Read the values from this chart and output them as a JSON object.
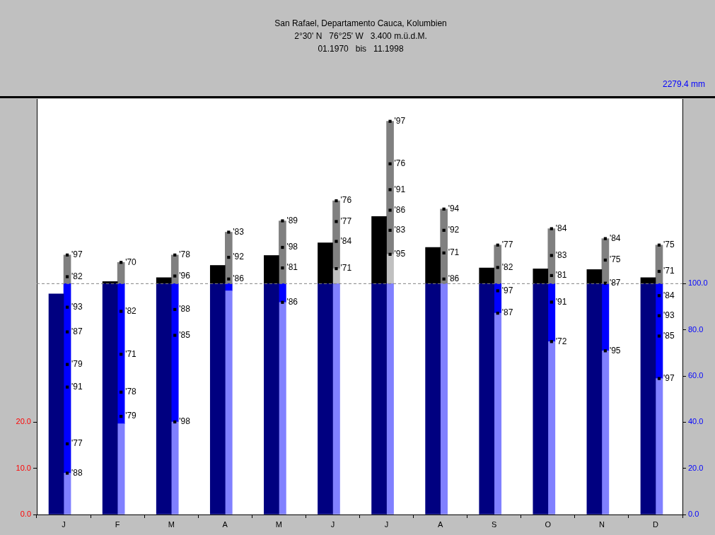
{
  "chart_data": {
    "type": "bar",
    "title": "San Rafael, Departamento Cauca, Kolumbien",
    "subtitle": "2°30' N   76°25' W   3.400 m.ü.d.M.",
    "categories": [
      "J",
      "F",
      "M",
      "A",
      "M",
      "J",
      "J",
      "A",
      "S",
      "O",
      "N",
      "D"
    ],
    "series": [
      {
        "color": "#000080",
        "axis": "y2",
        "base": [
          0,
          0,
          0,
          0,
          0,
          0,
          0,
          0,
          0,
          0,
          0,
          0
        ],
        "values": [
          95.6,
          100,
          100,
          100,
          100,
          100,
          100,
          100,
          100,
          100,
          100,
          100
        ]
      },
      {
        "color": "#000000",
        "axis": "y2",
        "base": [
          null,
          100,
          100,
          100,
          100,
          100,
          100,
          100,
          100,
          100,
          100,
          100
        ],
        "values": [
          null,
          0.9,
          2.6,
          7.9,
          12.2,
          17.7,
          29.1,
          15.7,
          6.8,
          6.4,
          6.1,
          2.6
        ]
      },
      {
        "color": "#8080ff",
        "axis": "y2",
        "base": [
          0,
          0,
          0,
          0,
          0,
          0,
          0,
          0,
          0,
          0,
          0,
          0
        ],
        "values": [
          17.9,
          39.3,
          40.1,
          96.9,
          91.9,
          100,
          100,
          100,
          87.2,
          74.9,
          70.9,
          58.9
        ]
      },
      {
        "color": "#0000ff",
        "axis": "y2",
        "base": [
          17.9,
          39.3,
          40.1,
          96.9,
          91.9,
          null,
          null,
          null,
          87.2,
          74.9,
          70.9,
          58.9
        ],
        "values": [
          82.1,
          60.7,
          59.9,
          3.1,
          8.1,
          null,
          null,
          null,
          12.8,
          25.1,
          29.1,
          41.1
        ]
      },
      {
        "color": "#c0c0c0",
        "axis": "y2",
        "base": [
          null,
          null,
          null,
          null,
          null,
          100,
          100,
          null,
          null,
          null,
          null,
          null
        ],
        "values": [
          null,
          null,
          null,
          null,
          null,
          6.5,
          12.7,
          null,
          null,
          null,
          null,
          null
        ]
      },
      {
        "color": "#808080",
        "axis": "y2",
        "base": [
          100,
          100,
          100,
          100,
          100,
          106.5,
          112.7,
          100,
          100,
          100,
          100,
          100
        ],
        "values": [
          12.4,
          9.2,
          12.4,
          22.3,
          27.2,
          29.4,
          57.6,
          32.3,
          16.7,
          23.8,
          19.5,
          16.7
        ]
      },
      {
        "type": "scatter",
        "name": "'70",
        "color": "#000000",
        "axis": "y2",
        "values": [
          null,
          109.2,
          null,
          null,
          null,
          null,
          null,
          null,
          null,
          null,
          null,
          null
        ]
      },
      {
        "type": "scatter",
        "name": "'71",
        "color": "#000000",
        "axis": "y2",
        "values": [
          null,
          69.4,
          null,
          null,
          null,
          106.5,
          null,
          113.3,
          null,
          null,
          null,
          105.3
        ]
      },
      {
        "type": "scatter",
        "name": "'72",
        "color": "#000000",
        "axis": "y2",
        "values": [
          null,
          null,
          null,
          null,
          null,
          null,
          null,
          null,
          null,
          74.9,
          null,
          null
        ]
      },
      {
        "type": "scatter",
        "name": "'75",
        "color": "#000000",
        "axis": "y2",
        "values": [
          null,
          null,
          null,
          null,
          null,
          null,
          null,
          null,
          null,
          null,
          110.2,
          116.7
        ]
      },
      {
        "type": "scatter",
        "name": "'76",
        "color": "#000000",
        "axis": "y2",
        "values": [
          null,
          null,
          null,
          null,
          null,
          135.9,
          151.9,
          null,
          null,
          null,
          null,
          null
        ]
      },
      {
        "type": "scatter",
        "name": "'77",
        "color": "#000000",
        "axis": "y2",
        "values": [
          30.6,
          null,
          null,
          null,
          null,
          126.9,
          null,
          null,
          116.7,
          null,
          null,
          null
        ]
      },
      {
        "type": "scatter",
        "name": "'78",
        "color": "#000000",
        "axis": "y2",
        "values": [
          null,
          53,
          112.4,
          null,
          null,
          null,
          null,
          null,
          null,
          null,
          null,
          null
        ]
      },
      {
        "type": "scatter",
        "name": "'79",
        "color": "#000000",
        "axis": "y2",
        "values": [
          65,
          42.5,
          null,
          null,
          null,
          null,
          null,
          null,
          null,
          null,
          null,
          null
        ]
      },
      {
        "type": "scatter",
        "name": "'81",
        "color": "#000000",
        "axis": "y2",
        "values": [
          null,
          null,
          null,
          null,
          106.8,
          null,
          null,
          null,
          null,
          103.5,
          null,
          null
        ]
      },
      {
        "type": "scatter",
        "name": "'82",
        "color": "#000000",
        "axis": "y2",
        "values": [
          103,
          88,
          null,
          null,
          null,
          null,
          null,
          null,
          107,
          null,
          null,
          null
        ]
      },
      {
        "type": "scatter",
        "name": "'83",
        "color": "#000000",
        "axis": "y2",
        "values": [
          null,
          null,
          null,
          122.3,
          null,
          null,
          123.1,
          null,
          null,
          112.2,
          null,
          null
        ]
      },
      {
        "type": "scatter",
        "name": "'84",
        "color": "#000000",
        "axis": "y2",
        "values": [
          null,
          null,
          null,
          null,
          null,
          118.3,
          null,
          null,
          null,
          123.8,
          119.5,
          94.8
        ]
      },
      {
        "type": "scatter",
        "name": "'85",
        "color": "#000000",
        "axis": "y2",
        "values": [
          null,
          null,
          77.6,
          null,
          null,
          null,
          null,
          null,
          null,
          null,
          null,
          77.3
        ]
      },
      {
        "type": "scatter",
        "name": "'86",
        "color": "#000000",
        "axis": "y2",
        "values": [
          null,
          null,
          null,
          102,
          91.9,
          null,
          131.8,
          102,
          null,
          null,
          null,
          null
        ]
      },
      {
        "type": "scatter",
        "name": "'87",
        "color": "#000000",
        "axis": "y2",
        "values": [
          79.1,
          null,
          null,
          null,
          null,
          null,
          null,
          null,
          87.2,
          null,
          100.2,
          null
        ]
      },
      {
        "type": "scatter",
        "name": "'88",
        "color": "#000000",
        "axis": "y2",
        "values": [
          17.9,
          null,
          88.8,
          null,
          null,
          null,
          null,
          null,
          null,
          null,
          null,
          null
        ]
      },
      {
        "type": "scatter",
        "name": "'89",
        "color": "#000000",
        "axis": "y2",
        "values": [
          null,
          null,
          null,
          null,
          127.2,
          null,
          null,
          null,
          null,
          null,
          null,
          null
        ]
      },
      {
        "type": "scatter",
        "name": "'91",
        "color": "#000000",
        "axis": "y2",
        "values": [
          55.2,
          null,
          null,
          null,
          null,
          null,
          140.7,
          null,
          null,
          92,
          null,
          null
        ]
      },
      {
        "type": "scatter",
        "name": "'92",
        "color": "#000000",
        "axis": "y2",
        "values": [
          null,
          null,
          null,
          111.4,
          null,
          null,
          null,
          123.1,
          null,
          null,
          null,
          null
        ]
      },
      {
        "type": "scatter",
        "name": "'93",
        "color": "#000000",
        "axis": "y2",
        "values": [
          89.8,
          null,
          null,
          null,
          null,
          null,
          null,
          null,
          null,
          null,
          null,
          86.1
        ]
      },
      {
        "type": "scatter",
        "name": "'94",
        "color": "#000000",
        "axis": "y2",
        "values": [
          null,
          null,
          null,
          null,
          null,
          null,
          null,
          132.3,
          null,
          null,
          null,
          null
        ]
      },
      {
        "type": "scatter",
        "name": "'95",
        "color": "#000000",
        "axis": "y2",
        "values": [
          null,
          null,
          null,
          null,
          null,
          null,
          112.7,
          null,
          null,
          null,
          70.9,
          null
        ]
      },
      {
        "type": "scatter",
        "name": "'96",
        "color": "#000000",
        "axis": "y2",
        "values": [
          null,
          null,
          103.3,
          null,
          null,
          null,
          null,
          null,
          null,
          null,
          null,
          null
        ]
      },
      {
        "type": "scatter",
        "name": "'97",
        "color": "#000000",
        "axis": "y2",
        "values": [
          112.4,
          null,
          null,
          null,
          null,
          null,
          170.3,
          null,
          96.9,
          null,
          null,
          58.9
        ]
      },
      {
        "type": "scatter",
        "name": "'98",
        "color": "#000000",
        "axis": "y2",
        "values": [
          null,
          null,
          40.1,
          null,
          115.7,
          null,
          null,
          null,
          null,
          null,
          null,
          null
        ]
      }
    ],
    "ylim": [
      0,
      90
    ],
    "yticks": [
      {
        "value": 0,
        "label": "0.0"
      },
      {
        "value": 10,
        "label": "10.0"
      },
      {
        "value": 20,
        "label": "20.0"
      }
    ],
    "y2lim": [
      0,
      180
    ],
    "y2ticks": [
      {
        "value": 0,
        "label": "0.0"
      },
      {
        "value": 20,
        "label": "20.0"
      },
      {
        "value": 40,
        "label": "40.0"
      },
      {
        "value": 60,
        "label": "60.0"
      },
      {
        "value": 80,
        "label": "80.0"
      },
      {
        "value": 100,
        "label": "100.0"
      }
    ],
    "marker": "square",
    "ref_lines": [
      {
        "axis": "y2",
        "value": 100,
        "color": "#808080",
        "line_style": "dashed"
      }
    ],
    "annotations": [
      "01.1970   bis   11.1998",
      "2279.4 mm"
    ]
  }
}
